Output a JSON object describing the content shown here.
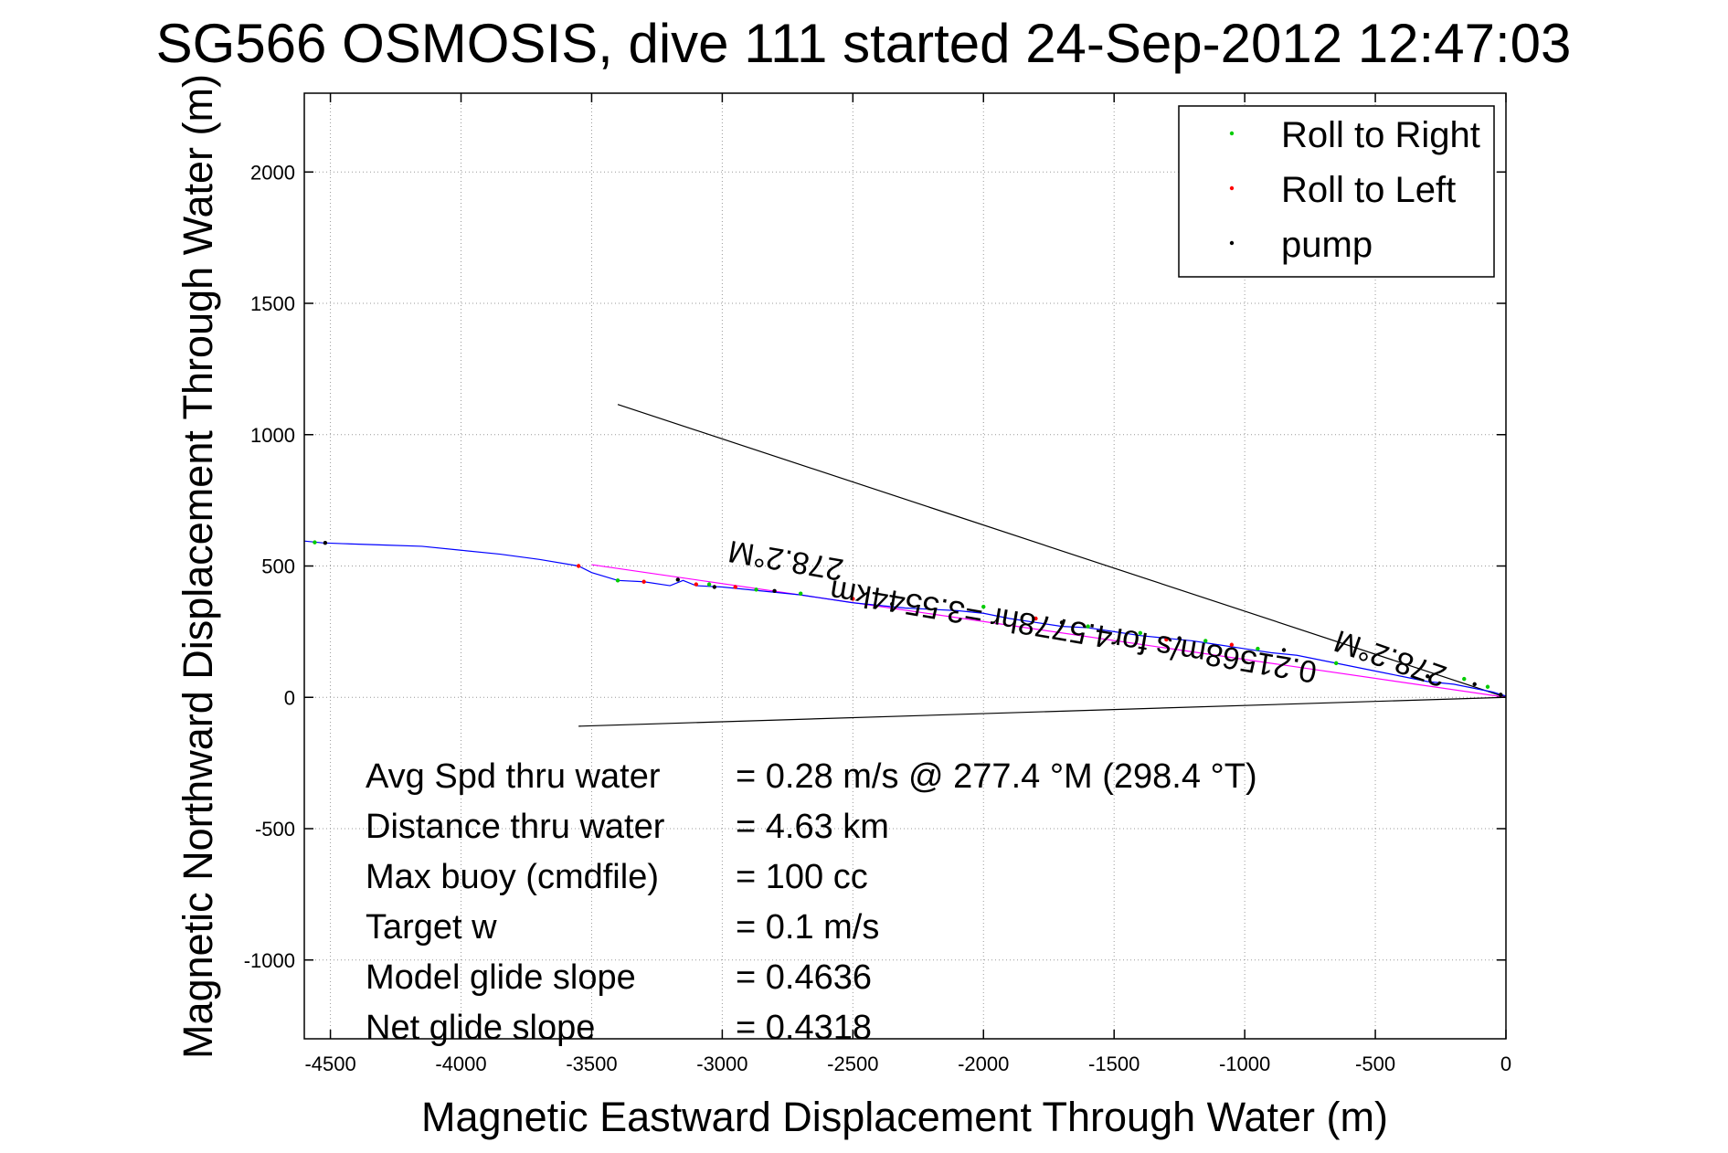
{
  "chart_data": {
    "type": "line",
    "title": "SG566 OSMOSIS, dive 111 started 24-Sep-2012 12:47:03",
    "xlabel": "Magnetic Eastward Displacement Through Water (m)",
    "ylabel": "Magnetic Northward Displacement Through Water (m)",
    "xlim": [
      -4600,
      0
    ],
    "ylim": [
      -1300,
      2300
    ],
    "xticks": [
      -4500,
      -4000,
      -3500,
      -3000,
      -2500,
      -2000,
      -1500,
      -1000,
      -500,
      0
    ],
    "yticks": [
      -1000,
      -500,
      0,
      500,
      1000,
      1500,
      2000
    ],
    "grid": true,
    "legend_position": "top-right",
    "legend": [
      {
        "label": "Roll to Right",
        "color": "#00cc00"
      },
      {
        "label": "Roll to Left",
        "color": "#ff0000"
      },
      {
        "label": "pump",
        "color": "#000000"
      }
    ],
    "track": {
      "color": "#0000ff",
      "x": [
        -4600,
        -4530,
        -4450,
        -4300,
        -4150,
        -4000,
        -3850,
        -3700,
        -3550,
        -3500,
        -3400,
        -3300,
        -3200,
        -3150,
        -3100,
        -3000,
        -2900,
        -2800,
        -2700,
        -2600,
        -2500,
        -2400,
        -2300,
        -2200,
        -2100,
        -2000,
        -1900,
        -1800,
        -1700,
        -1600,
        -1500,
        -1400,
        -1300,
        -1200,
        -1100,
        -1000,
        -900,
        -800,
        -700,
        -600,
        -500,
        -400,
        -300,
        -200,
        -150,
        -100,
        -50,
        0
      ],
      "y": [
        595,
        588,
        585,
        580,
        575,
        560,
        545,
        525,
        500,
        475,
        445,
        440,
        425,
        445,
        425,
        420,
        410,
        400,
        390,
        375,
        360,
        350,
        340,
        335,
        330,
        320,
        300,
        285,
        270,
        265,
        250,
        235,
        225,
        215,
        200,
        185,
        170,
        160,
        140,
        120,
        100,
        80,
        60,
        50,
        40,
        30,
        20,
        5
      ]
    },
    "roll_right": {
      "x": [
        -4560,
        -3400,
        -3050,
        -2870,
        -2700,
        -2000,
        -1600,
        -1400,
        -1150,
        -950,
        -650,
        -160,
        -70
      ],
      "y": [
        590,
        445,
        430,
        410,
        395,
        345,
        270,
        245,
        215,
        185,
        130,
        70,
        40
      ]
    },
    "roll_left": {
      "x": [
        -3550,
        -3300,
        -3100,
        -2950,
        -2500,
        -1800,
        -1300,
        -1050
      ],
      "y": [
        500,
        440,
        430,
        420,
        375,
        300,
        220,
        200
      ]
    },
    "pump": {
      "x": [
        -4520,
        -3170,
        -3030,
        -2800,
        -2350,
        -1700,
        -1250,
        -850,
        -300,
        -120,
        -20
      ],
      "y": [
        588,
        448,
        420,
        405,
        355,
        285,
        225,
        180,
        80,
        50,
        10
      ]
    },
    "fit_line": {
      "color": "#ff00ff",
      "x": [
        -3500,
        0
      ],
      "y": [
        505,
        0
      ]
    },
    "bracket_lines": [
      {
        "color": "#000000",
        "x": [
          -3400,
          0
        ],
        "y": [
          1115,
          0
        ]
      },
      {
        "color": "#000000",
        "x": [
          -3550,
          0
        ],
        "y": [
          -110,
          0
        ]
      }
    ],
    "annotations": [
      {
        "text": "278.2°M",
        "x": -2750,
        "y": 560,
        "rotate": 189.6
      },
      {
        "text": "0.21568m/s for4.5778hr =3.5544km",
        "x": -1650,
        "y": 290,
        "rotate": 189.6
      },
      {
        "text": "278.2°M",
        "x": -430,
        "y": 185,
        "rotate": 199
      }
    ],
    "stats": [
      {
        "label": "Avg Spd thru water",
        "value": "=  0.28 m/s @ 277.4 °M (298.4 °T)"
      },
      {
        "label": "Distance thru water",
        "value": "=  4.63 km"
      },
      {
        "label": "Max buoy (cmdfile)",
        "value": "= 100 cc"
      },
      {
        "label": "Target w",
        "value": "= 0.1 m/s"
      },
      {
        "label": "Model glide slope",
        "value": "= 0.4636"
      },
      {
        "label": "Net glide slope",
        "value": "= 0.4318"
      }
    ]
  }
}
